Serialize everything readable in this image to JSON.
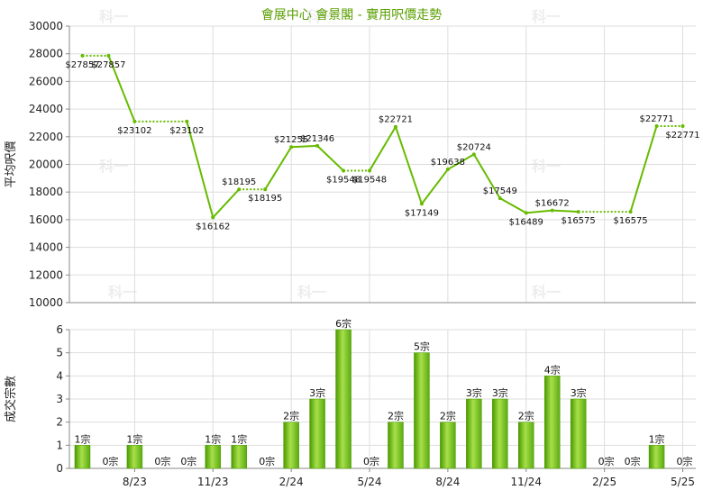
{
  "title": "會展中心 會景閣 - 實用呎價走勢",
  "watermark_text": "科一",
  "colors": {
    "line": "#66bb00",
    "bar_light": "#a8e04a",
    "bar_dark": "#4a9a00",
    "title": "#5a9e00",
    "grid": "#dddddd"
  },
  "chart_data": [
    {
      "type": "line",
      "ylabel": "平均呎價",
      "ylim": [
        10000,
        30000
      ],
      "yticks": [
        10000,
        12000,
        14000,
        16000,
        18000,
        20000,
        22000,
        24000,
        26000,
        28000,
        30000
      ],
      "x_count": 24,
      "xtick_labels": [
        {
          "index": 2,
          "label": "8/23"
        },
        {
          "index": 5,
          "label": "11/23"
        },
        {
          "index": 8,
          "label": "2/24"
        },
        {
          "index": 11,
          "label": "5/24"
        },
        {
          "index": 14,
          "label": "8/24"
        },
        {
          "index": 17,
          "label": "11/24"
        },
        {
          "index": 20,
          "label": "2/25"
        },
        {
          "index": 23,
          "label": "5/25"
        }
      ],
      "values": [
        27857,
        27857,
        23102,
        23102,
        16162,
        18195,
        18195,
        21255,
        21346,
        19548,
        19548,
        22721,
        17149,
        19638,
        20724,
        17549,
        16489,
        16672,
        16575,
        16575,
        22771,
        22771
      ],
      "point_index": [
        0,
        1,
        2,
        4,
        5,
        6,
        7,
        8,
        9,
        10,
        11,
        12,
        13,
        14,
        15,
        16,
        17,
        18,
        19,
        21,
        22,
        23
      ],
      "labels": [
        "$27857",
        "$27857",
        "$23102",
        "$23102",
        "$16162",
        "$18195",
        "$18195",
        "$21255",
        "$21346",
        "$19548",
        "$19548",
        "$22721",
        "$17149",
        "$19638",
        "$20724",
        "$17549",
        "$16489",
        "$16672",
        "$16575",
        "$16575",
        "$22771",
        "$22771"
      ],
      "dotted_segments": [
        0,
        2,
        5,
        9,
        18,
        20
      ]
    },
    {
      "type": "bar",
      "ylabel": "成交宗數",
      "ylim": [
        0,
        6
      ],
      "yticks": [
        0,
        1,
        2,
        3,
        4,
        5,
        6
      ],
      "values": [
        1,
        0,
        1,
        0,
        0,
        1,
        1,
        0,
        2,
        3,
        6,
        0,
        2,
        5,
        2,
        3,
        3,
        2,
        4,
        3,
        0,
        0,
        1,
        0
      ],
      "labels": [
        "1宗",
        "0宗",
        "1宗",
        "0宗",
        "0宗",
        "1宗",
        "1宗",
        "0宗",
        "2宗",
        "3宗",
        "6宗",
        "0宗",
        "2宗",
        "5宗",
        "2宗",
        "3宗",
        "3宗",
        "2宗",
        "4宗",
        "3宗",
        "0宗",
        "0宗",
        "1宗",
        "0宗"
      ]
    }
  ]
}
